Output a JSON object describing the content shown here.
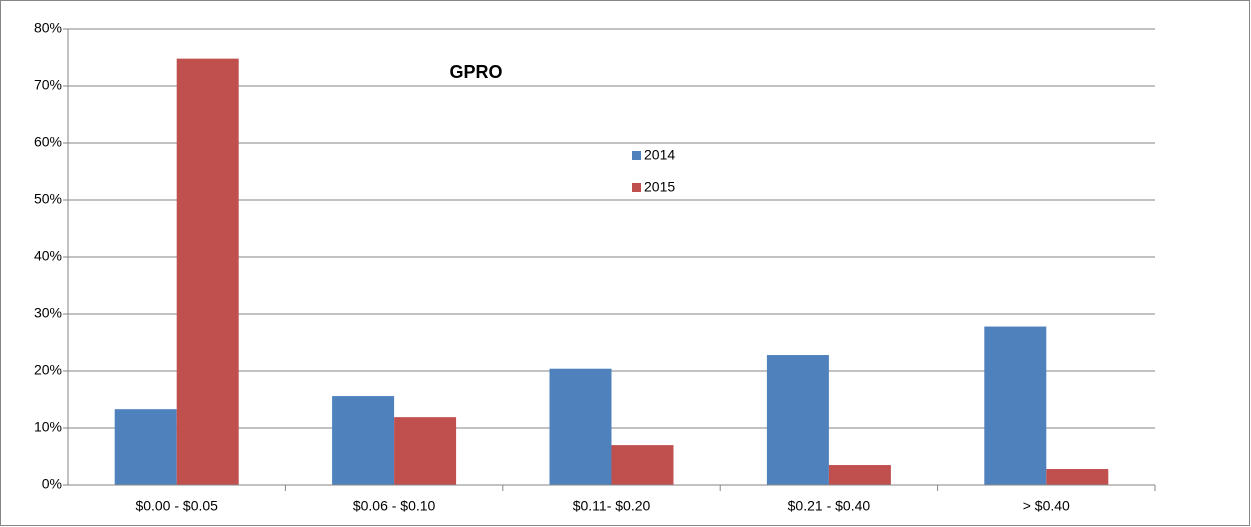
{
  "chart_data": {
    "type": "bar",
    "title": "GPRO",
    "categories": [
      "$0.00 - $0.05",
      "$0.06 - $0.10",
      "$0.11- $0.20",
      "$0.21 - $0.40",
      "> $0.40"
    ],
    "series": [
      {
        "name": "2014",
        "color": "#4f81bd",
        "values": [
          13.3,
          15.6,
          20.4,
          22.8,
          27.8
        ]
      },
      {
        "name": "2015",
        "color": "#c0504d",
        "values": [
          74.8,
          11.9,
          7.0,
          3.5,
          2.8
        ]
      }
    ],
    "ylim": [
      0,
      80
    ],
    "yticks": [
      {
        "value": 0,
        "label": "0%"
      },
      {
        "value": 10,
        "label": "10%"
      },
      {
        "value": 20,
        "label": "20%"
      },
      {
        "value": 30,
        "label": "30%"
      },
      {
        "value": 40,
        "label": "40%"
      },
      {
        "value": 50,
        "label": "50%"
      },
      {
        "value": 60,
        "label": "60%"
      },
      {
        "value": 70,
        "label": "70%"
      },
      {
        "value": 80,
        "label": "80%"
      }
    ],
    "grid": true
  }
}
